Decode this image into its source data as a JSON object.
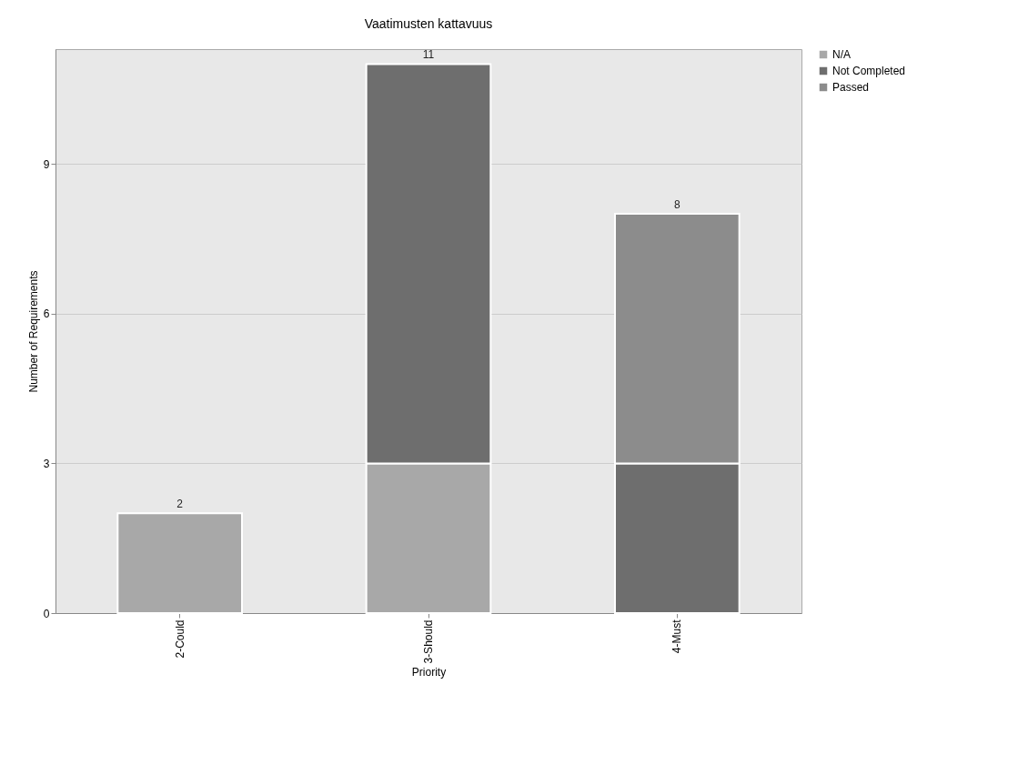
{
  "chart_data": {
    "type": "bar",
    "title": "Vaatimusten kattavuus",
    "xlabel": "Priority",
    "ylabel": "Number of Requirements",
    "categories": [
      "2-Could",
      "3-Should",
      "4-Must"
    ],
    "stacked": true,
    "series": [
      {
        "name": "N/A",
        "color": "#a8a8a8",
        "values": [
          2,
          3,
          null
        ]
      },
      {
        "name": "Not Completed",
        "color": "#6e6e6e",
        "values": [
          null,
          8,
          3
        ]
      },
      {
        "name": "Passed",
        "color": "#8c8c8c",
        "values": [
          null,
          null,
          5
        ]
      }
    ],
    "totals": [
      "2",
      "11",
      "8"
    ],
    "ylim": [
      0,
      11.3
    ],
    "yticks": [
      0,
      3,
      6,
      9
    ],
    "grid": "y",
    "legend": "top right"
  }
}
